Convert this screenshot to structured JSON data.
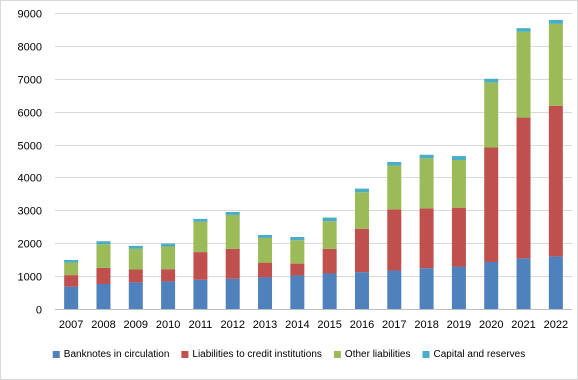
{
  "chart_data": {
    "type": "bar",
    "stacked": true,
    "title": "",
    "xlabel": "",
    "ylabel": "",
    "ylim": [
      0,
      9000
    ],
    "yticks": [
      0,
      1000,
      2000,
      3000,
      4000,
      5000,
      6000,
      7000,
      8000,
      9000
    ],
    "grid": true,
    "legend_position": "bottom",
    "categories": [
      "2007",
      "2008",
      "2009",
      "2010",
      "2011",
      "2012",
      "2013",
      "2014",
      "2015",
      "2016",
      "2017",
      "2018",
      "2019",
      "2020",
      "2021",
      "2022"
    ],
    "series": [
      {
        "name": "Banknotes in circulation",
        "color": "#4f81bd",
        "values": [
          680,
          760,
          810,
          840,
          890,
          920,
          960,
          1020,
          1080,
          1120,
          1170,
          1240,
          1290,
          1430,
          1540,
          1600
        ]
      },
      {
        "name": "Liabilities to credit institutions",
        "color": "#c0504d",
        "values": [
          350,
          490,
          390,
          370,
          840,
          910,
          450,
          360,
          750,
          1320,
          1860,
          1820,
          1790,
          3480,
          4280,
          4580
        ]
      },
      {
        "name": "Other liabilities",
        "color": "#9bbb59",
        "values": [
          380,
          720,
          630,
          690,
          920,
          1030,
          750,
          710,
          840,
          1110,
          1330,
          1520,
          1450,
          1980,
          2610,
          2490
        ]
      },
      {
        "name": "Capital and reserves",
        "color": "#4bacc6",
        "values": [
          80,
          90,
          90,
          90,
          90,
          90,
          90,
          100,
          110,
          110,
          110,
          110,
          120,
          110,
          110,
          120
        ]
      }
    ]
  }
}
